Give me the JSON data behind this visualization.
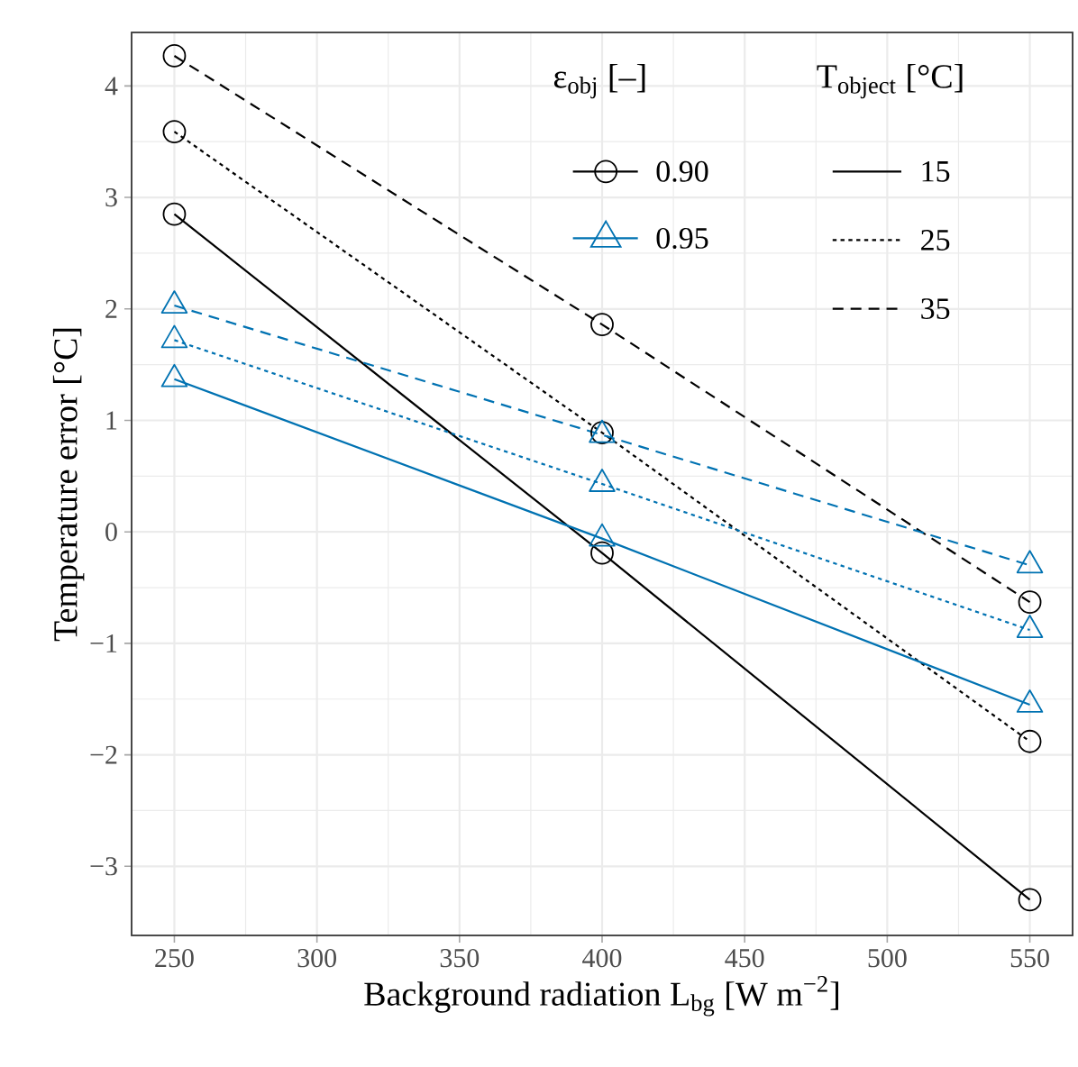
{
  "chart_data": {
    "type": "line",
    "xlabel": "Background radiation L$_{bg}$ [W m$^{−2}$]",
    "ylabel": "Temperature error [°C]",
    "legend_title": "ε$_{obj}$ [–]",
    "x": [
      250,
      400,
      550
    ],
    "series": [
      {
        "name": "0.90",
        "color": "#000000",
        "marker": "circle",
        "line_style": "solid",
        "values": [
          2.85,
          -0.19,
          -3.3
        ]
      },
      {
        "color": "#000000",
        "marker": "circle",
        "line_style": "dotted",
        "values": [
          3.59,
          0.89,
          -1.88
        ]
      },
      {
        "color": "#000000",
        "marker": "circle",
        "line_style": "dashed",
        "values": [
          4.27,
          1.86,
          -0.63
        ]
      },
      {
        "name": "0.95",
        "color": "#0072B2",
        "marker": "triangle",
        "line_style": "solid",
        "values": [
          1.37,
          -0.06,
          -1.55
        ]
      },
      {
        "color": "#0072B2",
        "marker": "triangle",
        "line_style": "dotted",
        "values": [
          1.72,
          0.43,
          -0.88
        ]
      },
      {
        "color": "#0072B2",
        "marker": "triangle",
        "line_style": "dashed",
        "values": [
          2.03,
          0.87,
          -0.3
        ]
      }
    ],
    "annotations": [
      "T$_{object}$ [°C]",
      "15",
      "25",
      "35"
    ],
    "xlim": [
      235,
      565
    ],
    "ylim": [
      -3.62,
      4.48
    ],
    "xticks": [
      250,
      300,
      350,
      400,
      450,
      500,
      550
    ],
    "yticks": [
      {
        "value": -3,
        "label": "−3"
      },
      {
        "value": -2,
        "label": "−2"
      },
      {
        "value": -1,
        "label": "−1"
      },
      0,
      1,
      2,
      3,
      4
    ],
    "grid": true,
    "legend": "top right"
  }
}
